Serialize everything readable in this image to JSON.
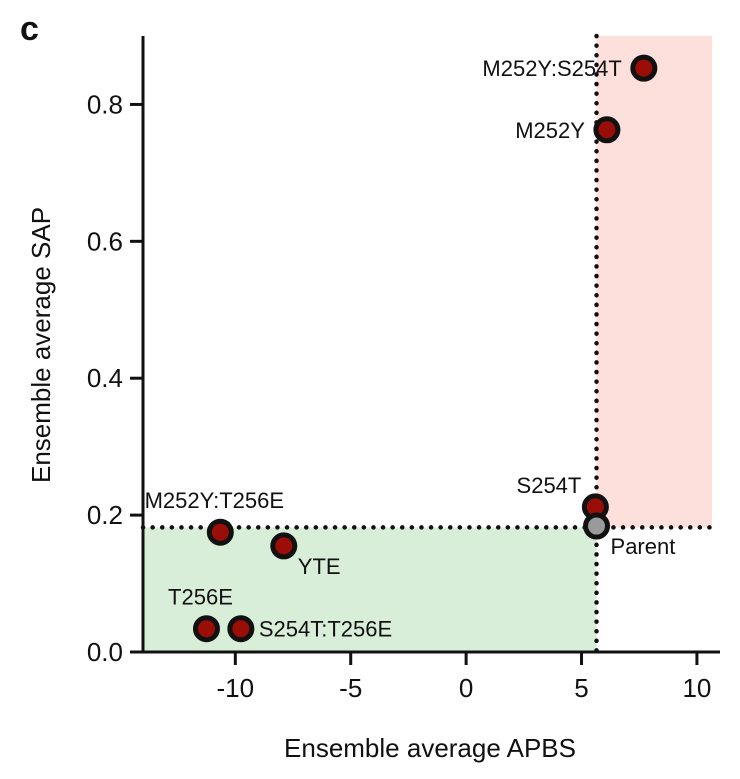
{
  "panel_label": "c",
  "chart_data": {
    "type": "scatter",
    "xlabel": "Ensemble average APBS",
    "ylabel": "Ensemble average SAP",
    "xlim": [
      -14,
      11
    ],
    "ylim": [
      0,
      0.9
    ],
    "xticks": [
      -10,
      -5,
      0,
      5,
      10
    ],
    "yticks": [
      0.0,
      0.2,
      0.4,
      0.6,
      0.8
    ],
    "ytick_labels": [
      "0.0",
      "0.2",
      "0.4",
      "0.6",
      "0.8"
    ],
    "grid": false,
    "reference_lines": {
      "x": 5.65,
      "y": 0.182,
      "style": "dotted"
    },
    "regions": [
      {
        "quadrant": "x > parent, y > parent",
        "color": "#fde0dc"
      },
      {
        "quadrant": "x < parent, y < parent",
        "color": "#d9eed9"
      }
    ],
    "points": [
      {
        "label": "M252Y:S254T",
        "x": 7.7,
        "y": 0.853,
        "color": "#9b0d07",
        "label_pos": "left"
      },
      {
        "label": "M252Y",
        "x": 6.1,
        "y": 0.763,
        "color": "#9b0d07",
        "label_pos": "left"
      },
      {
        "label": "S254T",
        "x": 5.6,
        "y": 0.212,
        "color": "#9b0d07",
        "label_pos": "upper-left"
      },
      {
        "label": "Parent",
        "x": 5.65,
        "y": 0.184,
        "color": "#9a9a9a",
        "label_pos": "lower-right"
      },
      {
        "label": "M252Y:T256E",
        "x": -10.65,
        "y": 0.175,
        "color": "#9b0d07",
        "label_pos": "above"
      },
      {
        "label": "YTE",
        "x": -7.9,
        "y": 0.155,
        "color": "#9b0d07",
        "label_pos": "lower-right"
      },
      {
        "label": "T256E",
        "x": -11.25,
        "y": 0.034,
        "color": "#9b0d07",
        "label_pos": "above"
      },
      {
        "label": "S254T:T256E",
        "x": -9.76,
        "y": 0.034,
        "color": "#9b0d07",
        "label_pos": "right"
      }
    ]
  }
}
